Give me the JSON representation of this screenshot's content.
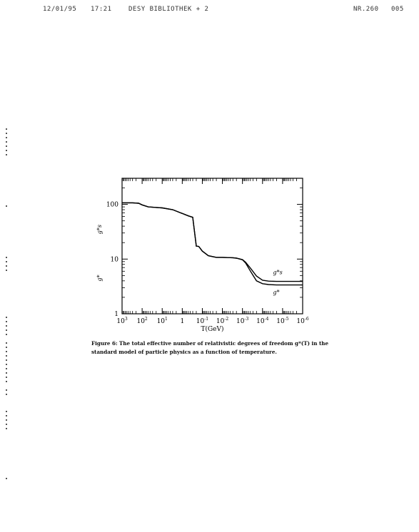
{
  "fax_header": {
    "date": "12/01/95",
    "time": "17:21",
    "sender": "DESY BIBLIOTHEK + 2",
    "number": "NR.260",
    "page": "005"
  },
  "caption": {
    "label": "Figure 6:",
    "text": "The total effective number of relativistic degrees of freedom g*(T) in the standard model of particle physics as a function of temperature."
  },
  "chart_data": {
    "type": "line",
    "title": "",
    "xlabel": "T(GeV)",
    "ylabel": "g*",
    "x_scale": "log",
    "x_reversed": true,
    "y_scale": "log",
    "xlim": [
      1000,
      1e-06
    ],
    "ylim": [
      1,
      300
    ],
    "x_ticks": [
      1000,
      100,
      10,
      1,
      0.1,
      0.01,
      0.001,
      0.0001,
      1e-05,
      1e-06
    ],
    "x_tick_labels": [
      "10^3",
      "10^2",
      "10^1",
      "1",
      "10^-1",
      "10^-2",
      "10^-3",
      "10^-4",
      "10^-5",
      "10^-6"
    ],
    "y_ticks": [
      1,
      10,
      100
    ],
    "y_tick_labels": [
      "1",
      "10",
      "100"
    ],
    "grid": false,
    "series": [
      {
        "name": "g*s",
        "x": [
          1000,
          300,
          150,
          100,
          50,
          20,
          10,
          3,
          0.5,
          0.3,
          0.2,
          0.15,
          0.1,
          0.05,
          0.02,
          0.01,
          0.003,
          0.002,
          0.001,
          0.0007,
          0.0004,
          0.0002,
          0.0001,
          5e-05,
          2e-05,
          1e-06
        ],
        "values": [
          106.75,
          106.75,
          105,
          98,
          90,
          88,
          86.25,
          80,
          61.75,
          58,
          17.25,
          17,
          14,
          11.5,
          10.75,
          10.75,
          10.6,
          10.4,
          9.8,
          8.8,
          6.8,
          4.9,
          4.1,
          3.95,
          3.91,
          3.91
        ]
      },
      {
        "name": "g*",
        "x": [
          1000,
          300,
          150,
          100,
          50,
          20,
          10,
          3,
          0.5,
          0.3,
          0.2,
          0.15,
          0.1,
          0.05,
          0.02,
          0.01,
          0.003,
          0.002,
          0.001,
          0.0007,
          0.0004,
          0.0002,
          0.0001,
          5e-05,
          2e-05,
          1e-06
        ],
        "values": [
          106.75,
          106.75,
          105,
          98,
          90,
          88,
          86.25,
          80,
          61.75,
          58,
          17.25,
          17,
          14,
          11.5,
          10.75,
          10.75,
          10.6,
          10.4,
          9.7,
          8.5,
          6.0,
          4.0,
          3.55,
          3.42,
          3.36,
          3.36
        ]
      }
    ],
    "annotations": [
      "g*s",
      "g*"
    ]
  }
}
